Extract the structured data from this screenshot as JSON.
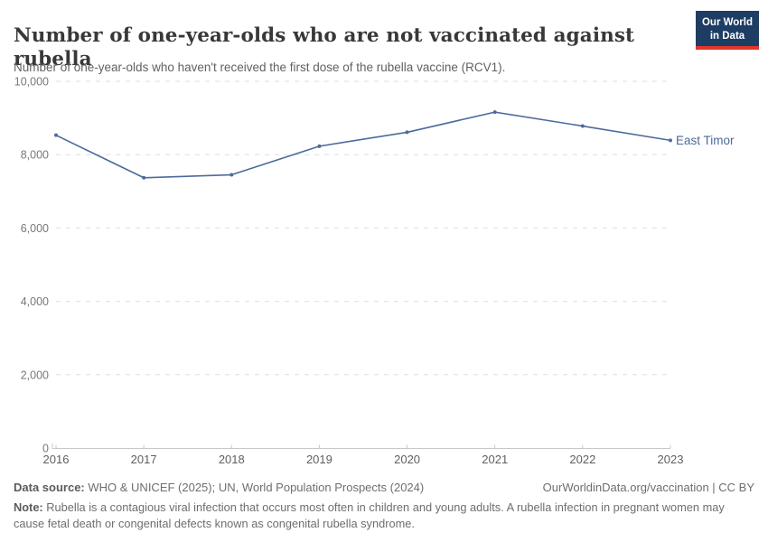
{
  "header": {
    "title": "Number of one-year-olds who are not vaccinated against rubella",
    "subtitle": "Number of one-year-olds who haven't received the first dose of the rubella vaccine (RCV1).",
    "logo": {
      "line1": "Our World",
      "line2": "in Data"
    }
  },
  "chart_data": {
    "type": "line",
    "title": "Number of one-year-olds who are not vaccinated against rubella",
    "x": [
      2016,
      2017,
      2018,
      2019,
      2020,
      2021,
      2022,
      2023
    ],
    "series": [
      {
        "name": "East Timor",
        "values": [
          8530,
          7370,
          7450,
          8230,
          8610,
          9160,
          8780,
          8390
        ],
        "color": "#4C6A9C"
      }
    ],
    "xlabel": "",
    "ylabel": "",
    "ylim": [
      0,
      10000
    ],
    "yticks": [
      0,
      2000,
      4000,
      6000,
      8000,
      10000
    ],
    "grid": "horizontal-dashed",
    "legend_position": "end-of-line-label"
  },
  "footer": {
    "data_source_label": "Data source:",
    "data_source_text": "WHO & UNICEF (2025); UN, World Population Prospects (2024)",
    "attribution": "OurWorldinData.org/vaccination | CC BY",
    "note_label": "Note:",
    "note_text": "Rubella is a contagious viral infection that occurs most often in children and young adults. A rubella infection in pregnant women may cause fetal death or congenital defects known as congenital rubella syndrome."
  },
  "colors": {
    "line": "#4C6A9C",
    "grid": "#DEDEDE",
    "axis": "#C8C8C8",
    "tick_label": "#787878",
    "x_label": "#5F5F5F",
    "title": "#383838",
    "logo_bg": "#1D3D63",
    "logo_accent": "#E0362C",
    "footer_text": "#6E6E6E"
  }
}
